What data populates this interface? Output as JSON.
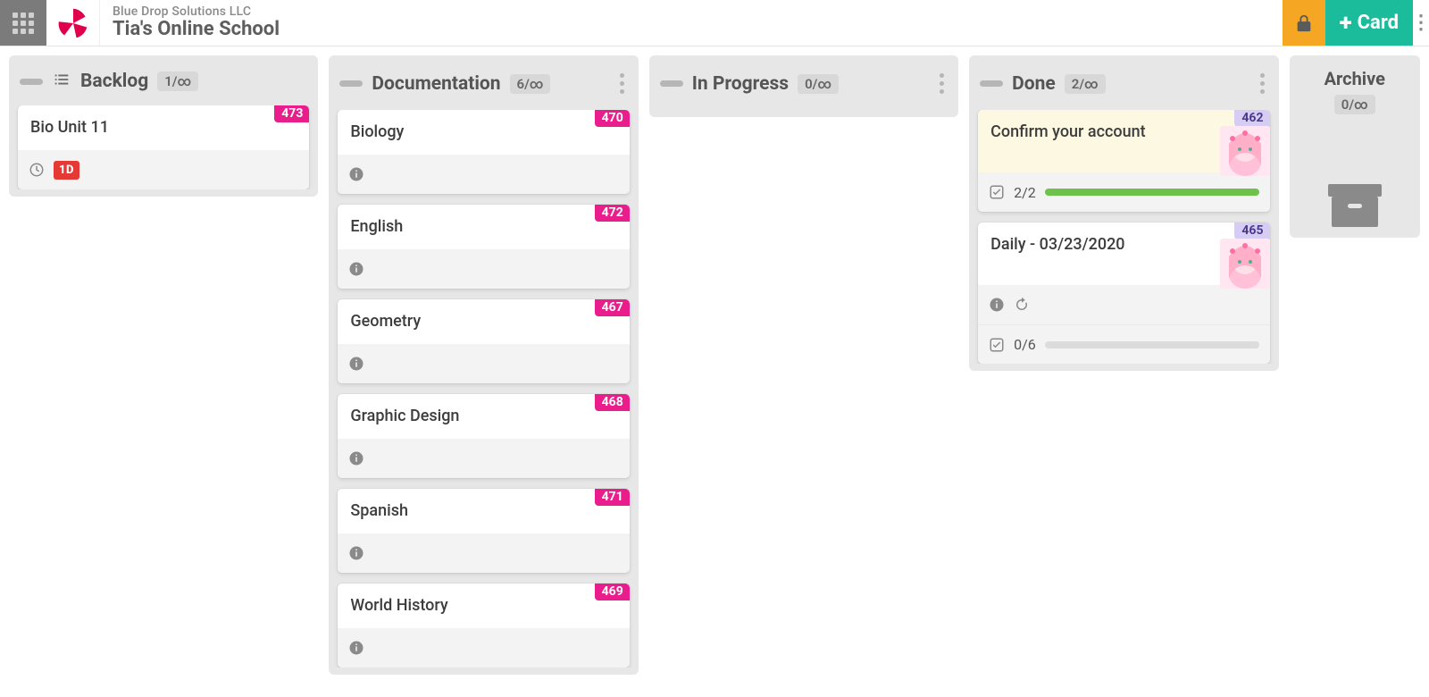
{
  "header": {
    "org": "Blue Drop Solutions LLC",
    "board": "Tia's Online School",
    "card_button": "Card"
  },
  "colors": {
    "pink_badge": "#e91e8c",
    "lavender_badge": "#d6ccf4",
    "lavender_text": "#4a3a8a",
    "lock_bg": "#f5a623",
    "add_bg": "#1abc9c",
    "due_chip": "#e53935",
    "progress_green": "#6cc24a",
    "column_bg": "#e7e7e7"
  },
  "columns": {
    "backlog": {
      "title": "Backlog",
      "count": "1/∞",
      "has_list_icon": true,
      "has_menu": false
    },
    "docs": {
      "title": "Documentation",
      "count": "6/∞",
      "has_list_icon": false,
      "has_menu": true
    },
    "inprogress": {
      "title": "In Progress",
      "count": "0/∞",
      "has_list_icon": false,
      "has_menu": true
    },
    "done": {
      "title": "Done",
      "count": "2/∞",
      "has_list_icon": false,
      "has_menu": true
    },
    "archive": {
      "title": "Archive",
      "count": "0/∞"
    }
  },
  "cards": {
    "backlog": [
      {
        "title": "Bio Unit 11",
        "badge": "473",
        "badge_style": "pink",
        "footer": {
          "type": "due",
          "due": "1D"
        }
      }
    ],
    "docs": [
      {
        "title": "Biology",
        "badge": "470",
        "badge_style": "pink",
        "footer": {
          "type": "info"
        }
      },
      {
        "title": "English",
        "badge": "472",
        "badge_style": "pink",
        "footer": {
          "type": "info"
        }
      },
      {
        "title": "Geometry",
        "badge": "467",
        "badge_style": "pink",
        "footer": {
          "type": "info"
        }
      },
      {
        "title": "Graphic Design",
        "badge": "468",
        "badge_style": "pink",
        "footer": {
          "type": "info"
        }
      },
      {
        "title": "Spanish",
        "badge": "471",
        "badge_style": "pink",
        "footer": {
          "type": "info"
        }
      },
      {
        "title": "World History",
        "badge": "469",
        "badge_style": "pink",
        "footer": {
          "type": "info"
        }
      }
    ],
    "done": [
      {
        "title": "Confirm your account",
        "badge": "462",
        "badge_style": "lav",
        "cream": true,
        "avatar": true,
        "footer": {
          "type": "progress",
          "text": "2/2",
          "pct": 100
        }
      },
      {
        "title": "Daily - 03/23/2020",
        "badge": "465",
        "badge_style": "lav",
        "avatar": true,
        "footer": {
          "type": "info_refresh_progress",
          "text": "0/6",
          "pct": 0
        }
      }
    ]
  }
}
